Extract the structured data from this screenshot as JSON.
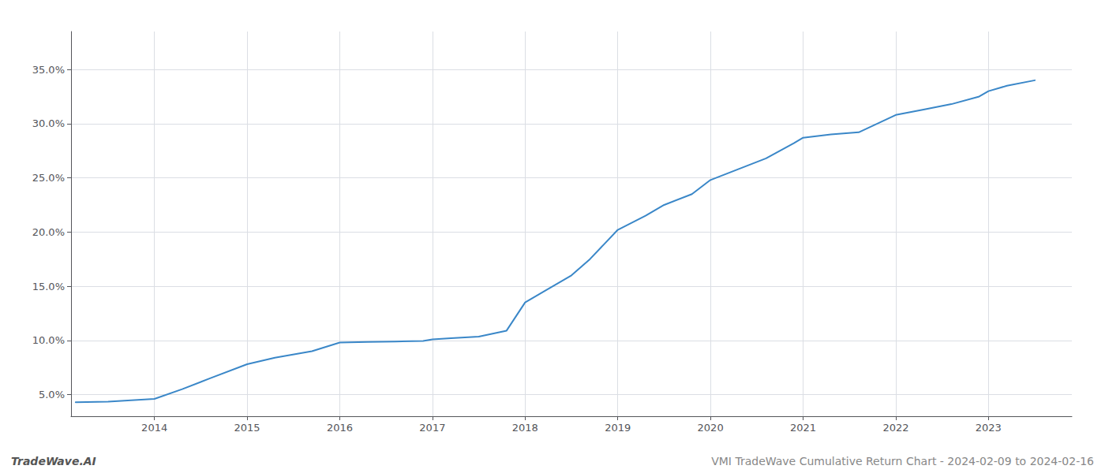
{
  "chart_data": {
    "type": "line",
    "x": [
      2013.15,
      2013.5,
      2014.0,
      2014.3,
      2014.6,
      2015.0,
      2015.3,
      2015.7,
      2016.0,
      2016.3,
      2016.6,
      2016.9,
      2017.0,
      2017.2,
      2017.5,
      2017.8,
      2018.0,
      2018.2,
      2018.5,
      2018.7,
      2019.0,
      2019.3,
      2019.5,
      2019.8,
      2020.0,
      2020.3,
      2020.6,
      2020.9,
      2021.0,
      2021.3,
      2021.6,
      2022.0,
      2022.3,
      2022.6,
      2022.9,
      2023.0,
      2023.2,
      2023.5
    ],
    "values": [
      4.3,
      4.35,
      4.6,
      5.5,
      6.5,
      7.8,
      8.4,
      9.0,
      9.8,
      9.85,
      9.9,
      9.95,
      10.1,
      10.2,
      10.35,
      10.9,
      13.5,
      14.5,
      16.0,
      17.5,
      20.2,
      21.5,
      22.5,
      23.5,
      24.8,
      25.8,
      26.8,
      28.2,
      28.7,
      29.0,
      29.2,
      30.8,
      31.3,
      31.8,
      32.5,
      33.0,
      33.5,
      34.0
    ],
    "color": "#3a87c8",
    "xlim": [
      2013.1,
      2023.9
    ],
    "xticks": [
      2014,
      2015,
      2016,
      2017,
      2018,
      2019,
      2020,
      2021,
      2022,
      2023
    ],
    "ylim": [
      3.0,
      38.5
    ],
    "yticks": [
      {
        "value": 5.0,
        "label": "5.0%"
      },
      {
        "value": 10.0,
        "label": "10.0%"
      },
      {
        "value": 15.0,
        "label": "15.0%"
      },
      {
        "value": 20.0,
        "label": "20.0%"
      },
      {
        "value": 25.0,
        "label": "25.0%"
      },
      {
        "value": 30.0,
        "label": "30.0%"
      },
      {
        "value": 35.0,
        "label": "35.0%"
      }
    ],
    "grid": true,
    "annotations": [
      "TradeWave.AI",
      "VMI TradeWave Cumulative Return Chart - 2024-02-09 to 2024-02-16"
    ]
  }
}
